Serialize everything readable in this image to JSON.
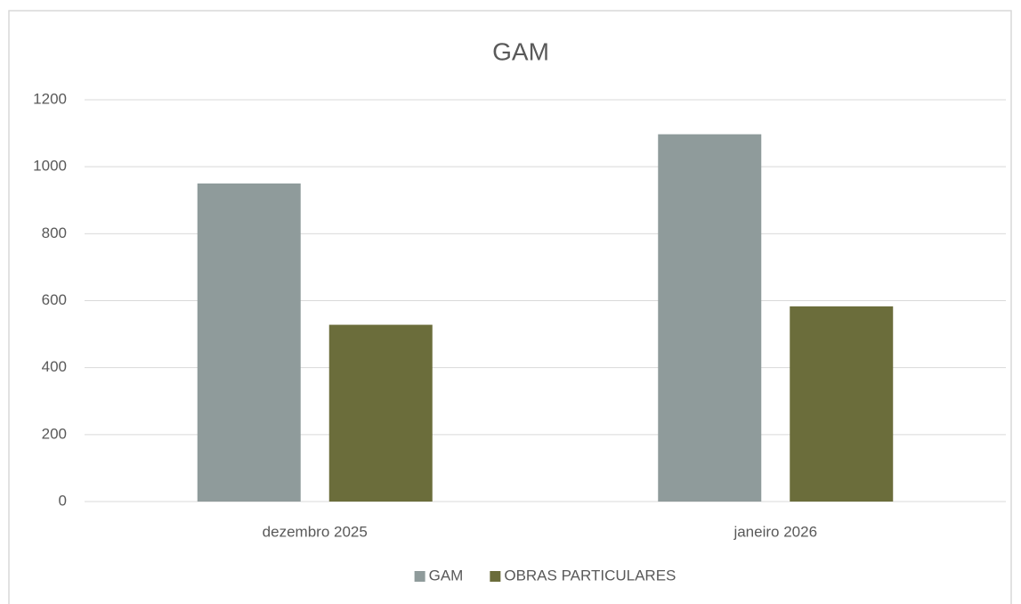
{
  "chart_data": {
    "type": "bar",
    "title": "GAM",
    "categories": [
      "dezembro 2025",
      "janeiro 2026"
    ],
    "series": [
      {
        "name": "GAM",
        "color": "#8f9b9b",
        "values": [
          950,
          1097
        ]
      },
      {
        "name": "OBRAS PARTICULARES",
        "color": "#6b6d3b",
        "values": [
          528,
          583
        ]
      }
    ],
    "ylim": [
      0,
      1200
    ],
    "yticks": [
      0,
      200,
      400,
      600,
      800,
      1000,
      1200
    ],
    "grid": true,
    "legend": "bottom"
  }
}
